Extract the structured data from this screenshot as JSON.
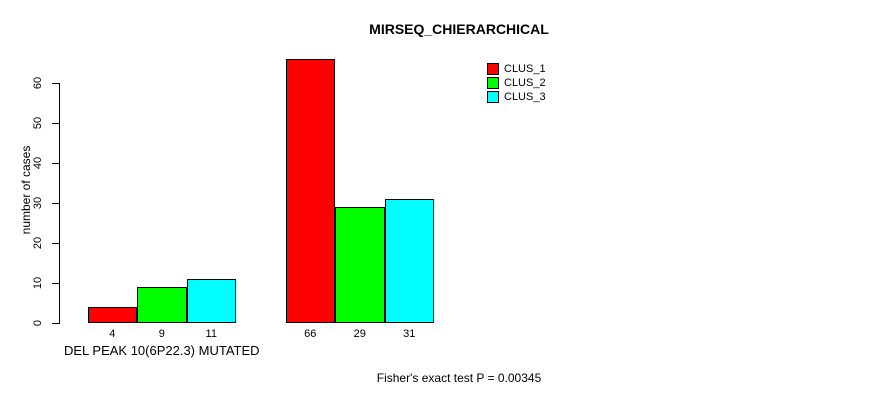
{
  "chart_data": {
    "type": "bar",
    "grouped": true,
    "title": "MIRSEQ_CHIERARCHICAL",
    "ylabel": "number of cases",
    "xlabel": "",
    "categories": [
      "DEL PEAK 10(6P22.3) MUTATED",
      ""
    ],
    "series": [
      {
        "name": "CLUS_1",
        "color": "#ff0000",
        "values": [
          4,
          66
        ]
      },
      {
        "name": "CLUS_2",
        "color": "#00ff00",
        "values": [
          9,
          29
        ]
      },
      {
        "name": "CLUS_3",
        "color": "#00ffff",
        "values": [
          11,
          31
        ]
      }
    ],
    "bar_value_labels": [
      [
        "4",
        "9",
        "11"
      ],
      [
        "66",
        "29",
        "31"
      ]
    ],
    "yticks": [
      0,
      10,
      20,
      30,
      40,
      50,
      60
    ],
    "ylim": [
      0,
      66
    ],
    "grid": false,
    "legend_position": "top-right",
    "legend_entries": [
      "CLUS_1",
      "CLUS_2",
      "CLUS_3"
    ]
  },
  "footer": {
    "text": "Fisher's exact test P = 0.00345"
  },
  "colors": {
    "axis": "#000000",
    "text": "#000000",
    "background": "#ffffff"
  }
}
